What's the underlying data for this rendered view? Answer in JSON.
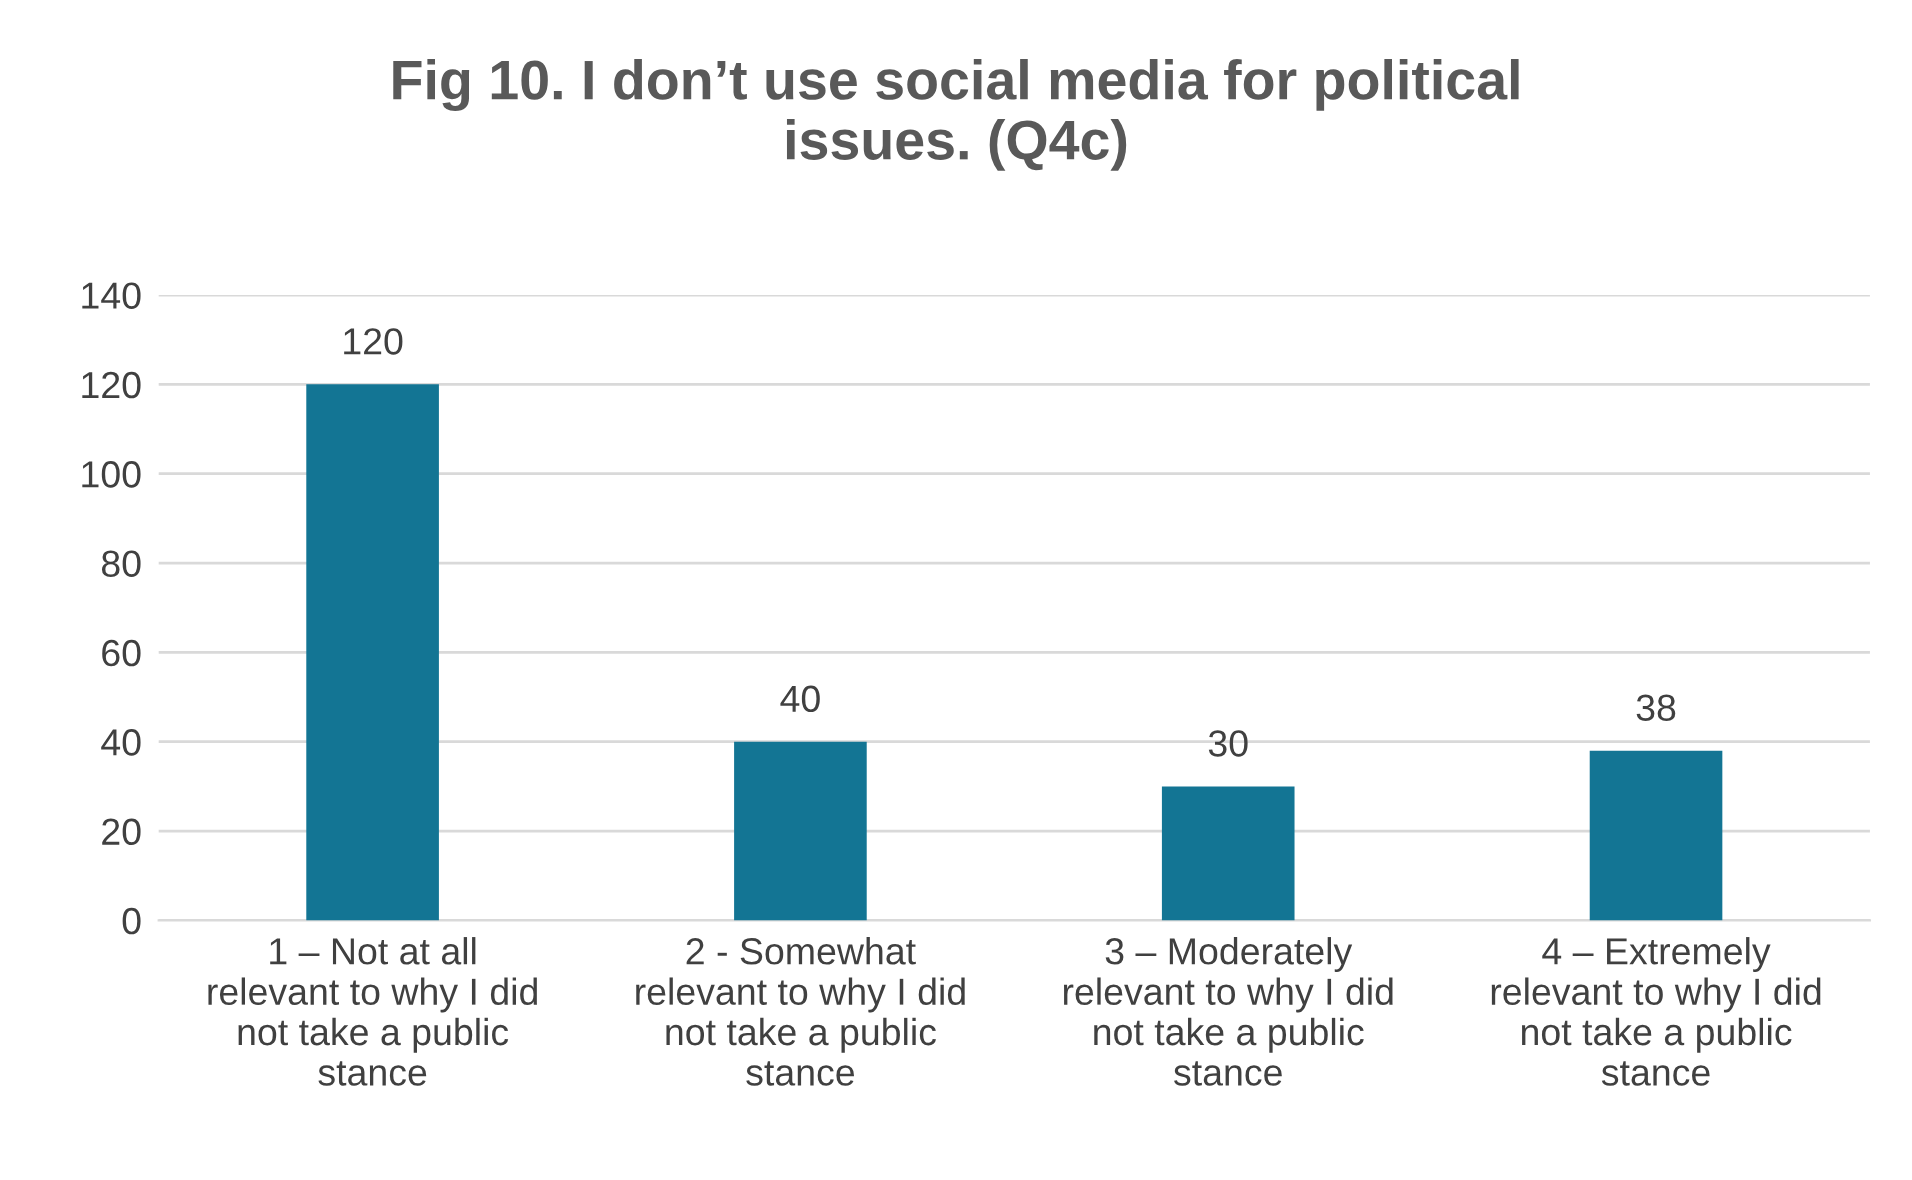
{
  "chart_data": {
    "type": "bar",
    "title": "Fig 10. I don’t use social media for political\nissues. (Q4c)",
    "categories": [
      "1 – Not at all\nrelevant to why I did\nnot take a public\nstance",
      "2 - Somewhat\nrelevant to why I did\nnot take a public\nstance",
      "3 – Moderately\nrelevant to why I did\nnot take a public\nstance",
      "4 – Extremely\nrelevant to why I did\nnot take a public\nstance"
    ],
    "values": [
      120,
      40,
      30,
      38
    ],
    "color": "#137594",
    "ylim": [
      0,
      140
    ],
    "yticks": [
      0,
      20,
      40,
      60,
      80,
      100,
      120,
      140
    ],
    "grid": "y",
    "data_labels": true
  }
}
